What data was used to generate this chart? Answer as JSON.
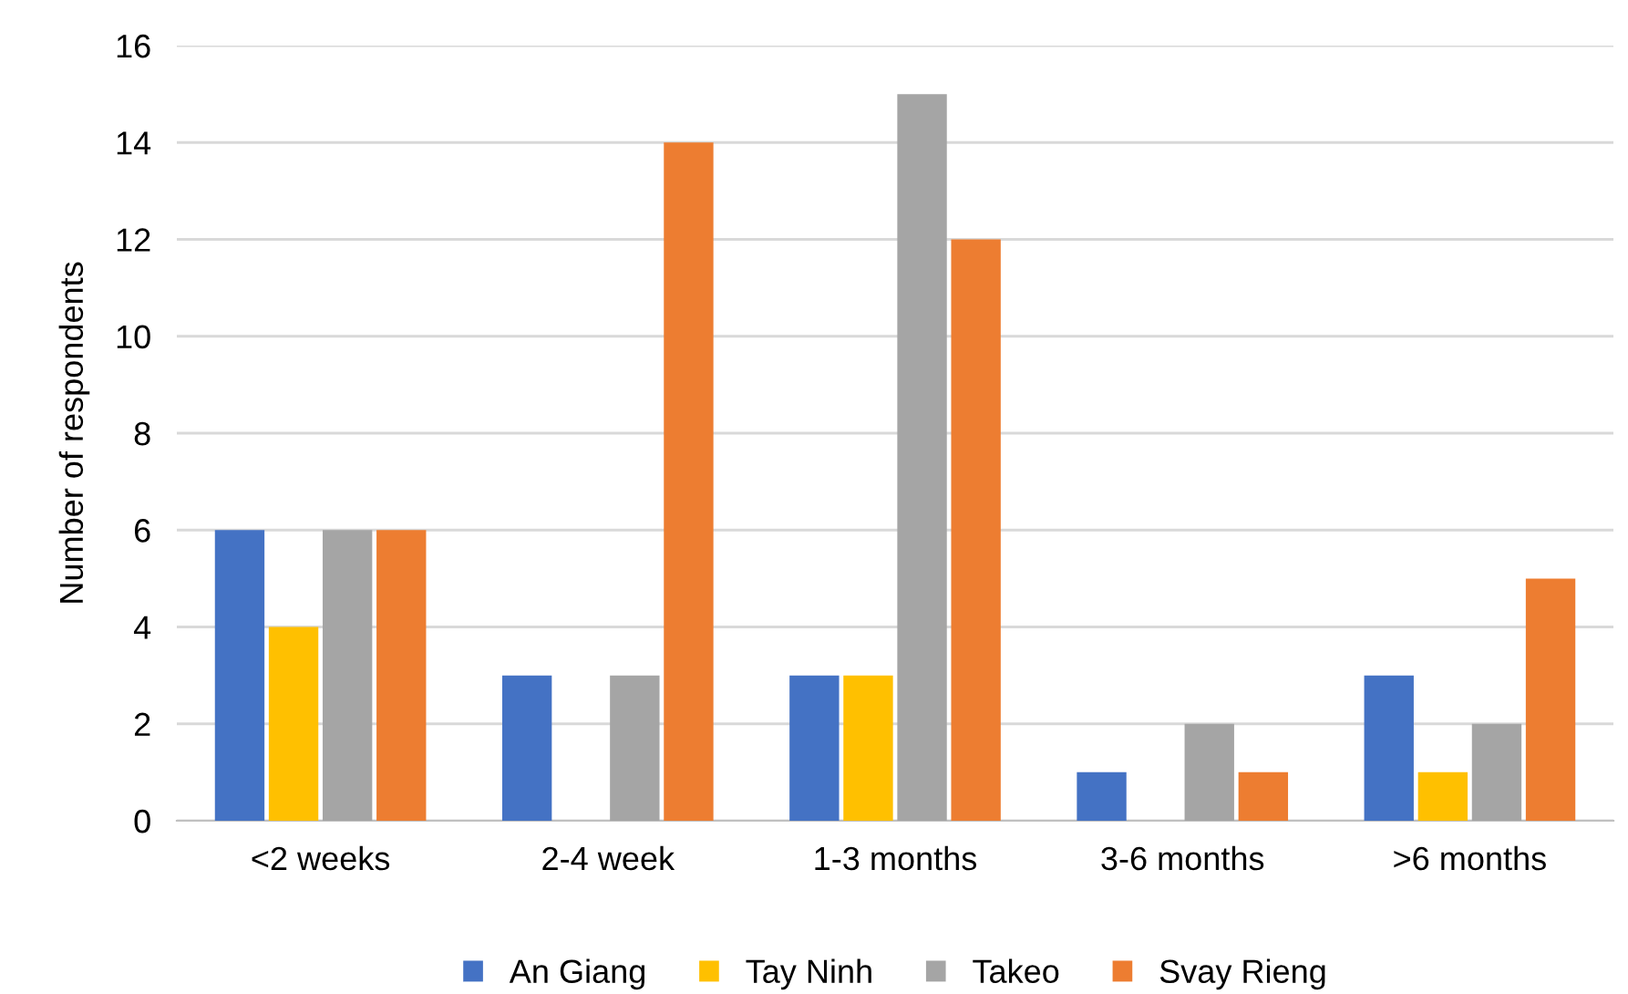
{
  "chart_data": {
    "type": "bar",
    "ylabel": "Number of respondents",
    "categories": [
      "<2 weeks",
      "2-4 week",
      "1-3 months",
      "3-6 months",
      ">6 months"
    ],
    "series": [
      {
        "name": "An Giang",
        "color": "#4472c4",
        "values": [
          6,
          3,
          3,
          1,
          3
        ]
      },
      {
        "name": "Tay Ninh",
        "color": "#ffc000",
        "values": [
          4,
          0,
          3,
          0,
          1
        ]
      },
      {
        "name": "Takeo",
        "color": "#a5a5a5",
        "values": [
          6,
          3,
          15,
          2,
          2
        ]
      },
      {
        "name": "Svay Rieng",
        "color": "#ed7d31",
        "values": [
          6,
          14,
          12,
          1,
          5
        ]
      }
    ],
    "ylim": [
      0,
      16
    ],
    "yticks": [
      0,
      2,
      4,
      6,
      8,
      10,
      12,
      14,
      16
    ],
    "grid": "y",
    "legend": "bottom"
  }
}
